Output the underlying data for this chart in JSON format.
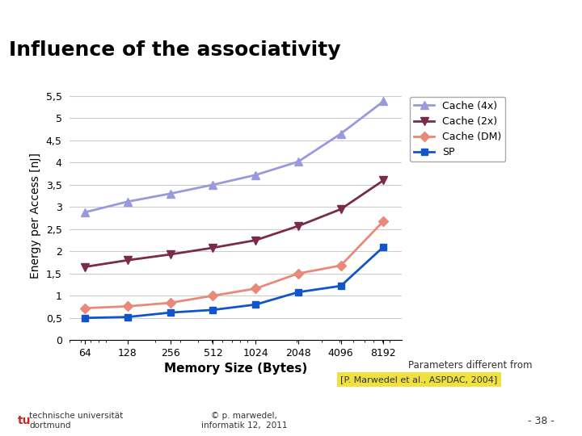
{
  "title": "Influence of the associativity",
  "xlabel": "Memory Size (Bytes)",
  "ylabel": "Energy per Access [nJ]",
  "x_labels": [
    "64",
    "128",
    "256",
    "512",
    "1024",
    "2048",
    "4096",
    "8192"
  ],
  "x_values": [
    64,
    128,
    256,
    512,
    1024,
    2048,
    4096,
    8192
  ],
  "cache_4x": [
    2.88,
    3.12,
    3.3,
    3.5,
    3.72,
    4.02,
    4.65,
    5.38
  ],
  "cache_2x": [
    1.65,
    1.8,
    1.93,
    2.08,
    2.25,
    2.57,
    2.95,
    3.6
  ],
  "cache_dm": [
    0.72,
    0.76,
    0.84,
    1.0,
    1.16,
    1.5,
    1.68,
    2.68
  ],
  "sp": [
    0.5,
    0.52,
    0.62,
    0.68,
    0.8,
    1.08,
    1.22,
    2.1
  ],
  "color_4x": "#9999dd",
  "color_2x": "#7a2a4a",
  "color_dm": "#e8897a",
  "color_sp": "#1155cc",
  "ylim": [
    0,
    5.6
  ],
  "yticks": [
    0,
    0.5,
    1.0,
    1.5,
    2.0,
    2.5,
    3.0,
    3.5,
    4.0,
    4.5,
    5.0,
    5.5
  ],
  "ytick_labels": [
    "0",
    "0,5",
    "1",
    "1,5",
    "2",
    "2,5",
    "3",
    "3,5",
    "4",
    "4,5",
    "5",
    "5,5"
  ],
  "bg_color": "#ffffff",
  "plot_bg": "#ffffff",
  "annotation": "Parameters different from\nprevious slides",
  "reference": "[P. Marwedel et al., ASPDAC, 2004]",
  "footer_left": "technische universität\ndortmund",
  "footer_center": "© p. marwedel,\ninformatik 12,  2011",
  "footer_page": "- 38 -",
  "slide_title_color": "#000000",
  "accent_color_green": "#8db000",
  "accent_color_yellow": "#e8d000"
}
